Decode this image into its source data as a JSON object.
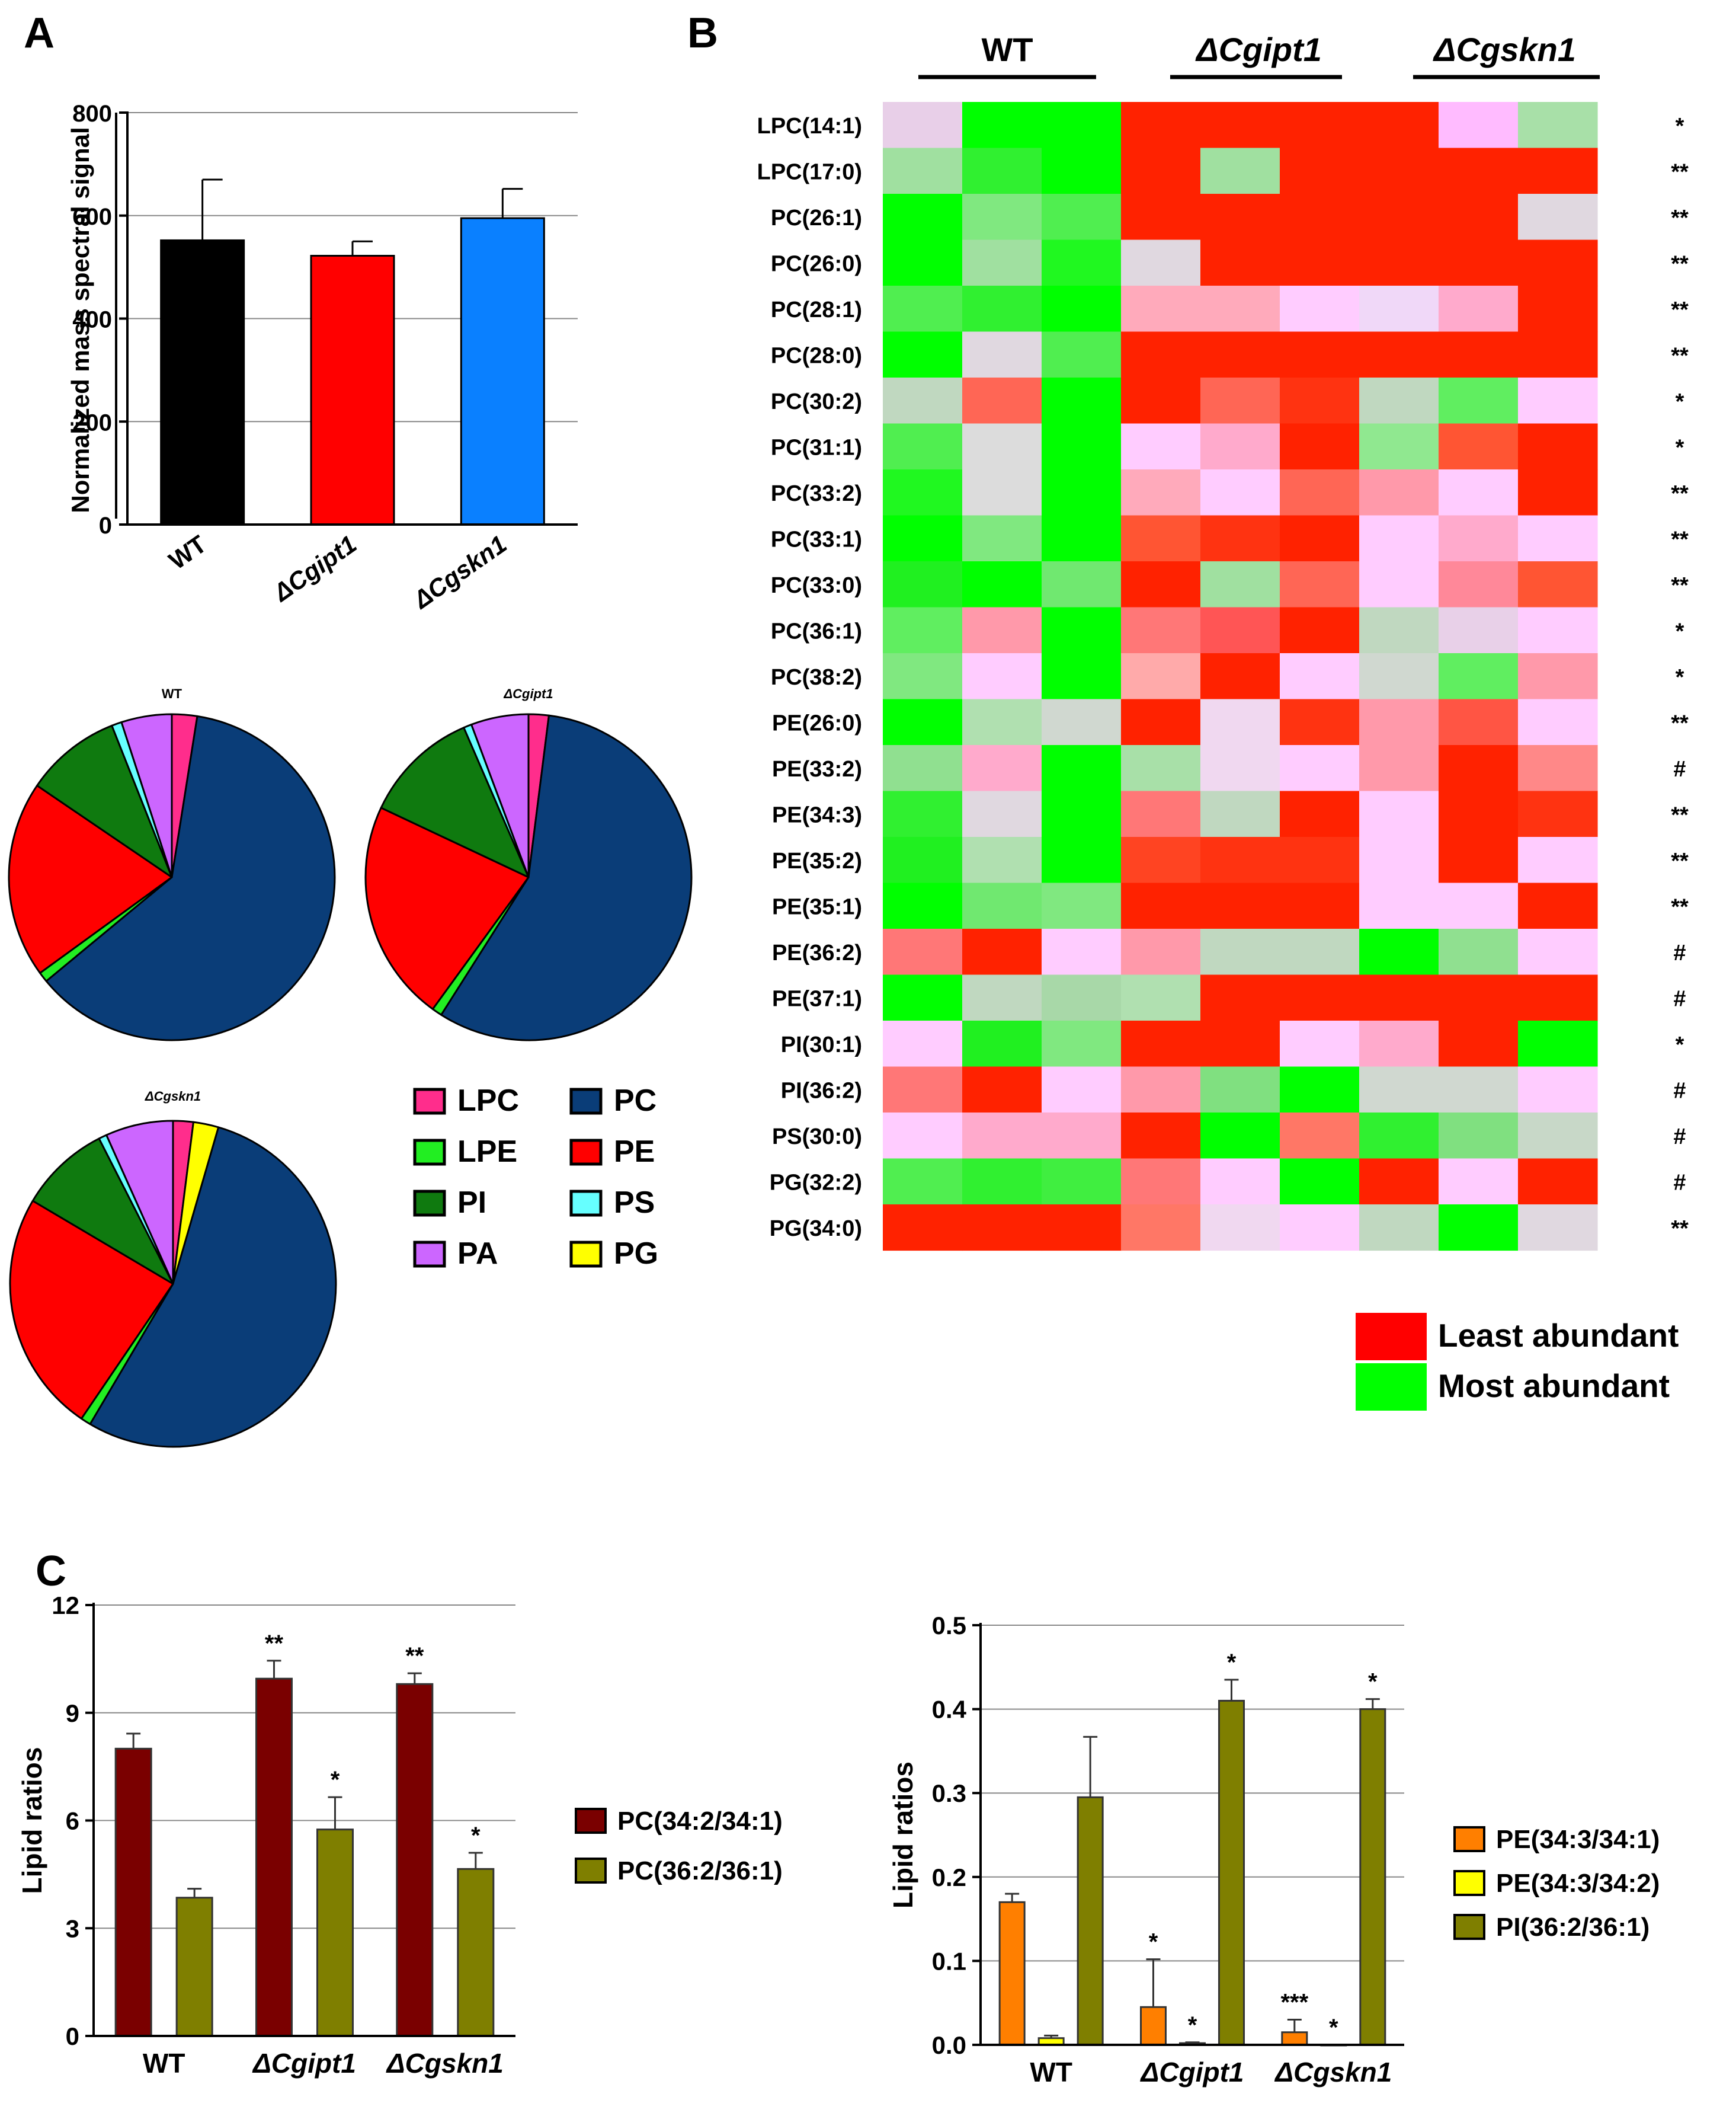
{
  "panels": {
    "a": "A",
    "b": "B",
    "c": "C"
  },
  "chart_data": [
    {
      "id": "A-bar",
      "type": "bar",
      "categories": [
        "WT",
        "ΔCgipt1",
        "ΔCgskn1"
      ],
      "values": [
        552,
        522,
        595
      ],
      "errors": [
        118,
        28,
        57
      ],
      "colors": [
        "#000000",
        "#ff0000",
        "#0a80ff"
      ],
      "ylabel": "Normalized mass spectral signal",
      "ylim": [
        0,
        800
      ],
      "yticks": [
        0,
        200,
        400,
        600,
        800
      ],
      "grid": true
    },
    {
      "id": "A-pie-WT",
      "type": "pie",
      "title": "WT",
      "slices": [
        {
          "name": "LPC",
          "value": 2.5
        },
        {
          "name": "PC",
          "value": 61.5
        },
        {
          "name": "LPE",
          "value": 1.0
        },
        {
          "name": "PE",
          "value": 19.5
        },
        {
          "name": "PI",
          "value": 9.5
        },
        {
          "name": "PS",
          "value": 1.0
        },
        {
          "name": "PA",
          "value": 5.0
        }
      ]
    },
    {
      "id": "A-pie-Cgipt1",
      "type": "pie",
      "title": "ΔCgipt1",
      "slices": [
        {
          "name": "LPC",
          "value": 2.0
        },
        {
          "name": "PC",
          "value": 57.0
        },
        {
          "name": "LPE",
          "value": 1.0
        },
        {
          "name": "PE",
          "value": 22.0
        },
        {
          "name": "PI",
          "value": 11.5
        },
        {
          "name": "PS",
          "value": 0.8
        },
        {
          "name": "PA",
          "value": 5.7
        }
      ]
    },
    {
      "id": "A-pie-Cgskn1",
      "type": "pie",
      "title": "ΔCgskn1",
      "slices": [
        {
          "name": "LPC",
          "value": 2.0
        },
        {
          "name": "PG",
          "value": 2.5
        },
        {
          "name": "PC",
          "value": 54.0
        },
        {
          "name": "LPE",
          "value": 1.0
        },
        {
          "name": "PE",
          "value": 24.0
        },
        {
          "name": "PI",
          "value": 9.0
        },
        {
          "name": "PS",
          "value": 0.8
        },
        {
          "name": "PA",
          "value": 6.7
        }
      ]
    },
    {
      "id": "B-heatmap",
      "type": "heatmap",
      "groups": [
        "WT",
        "ΔCgipt1",
        "ΔCgskn1"
      ],
      "rows": [
        "LPC(14:1)",
        "LPC(17:0)",
        "PC(26:1)",
        "PC(26:0)",
        "PC(28:1)",
        "PC(28:0)",
        "PC(30:2)",
        "PC(31:1)",
        "PC(33:2)",
        "PC(33:1)",
        "PC(33:0)",
        "PC(36:1)",
        "PC(38:2)",
        "PE(26:0)",
        "PE(33:2)",
        "PE(34:3)",
        "PE(35:2)",
        "PE(35:1)",
        "PE(36:2)",
        "PE(37:1)",
        "PI(30:1)",
        "PI(36:2)",
        "PS(30:0)",
        "PG(32:2)",
        "PG(34:0)"
      ],
      "significance": [
        "*",
        "**",
        "**",
        "**",
        "**",
        "**",
        "*",
        "*",
        "**",
        "**",
        "**",
        "*",
        "*",
        "**",
        "#",
        "**",
        "**",
        "**",
        "#",
        "#",
        "*",
        "#",
        "#",
        "#",
        "**"
      ],
      "cells": [
        [
          "#e8cfe8",
          "#00ff00",
          "#00ff00",
          "#ff2200",
          "#ff2200",
          "#ff2200",
          "#ff2200",
          "#ffbbff",
          "#a8e0a8"
        ],
        [
          "#a0e0a0",
          "#30f030",
          "#00ff00",
          "#ff2200",
          "#a0e0a0",
          "#ff2200",
          "#ff2200",
          "#ff2200",
          "#ff2200"
        ],
        [
          "#00ff00",
          "#80e880",
          "#50ee50",
          "#ff2200",
          "#ff2200",
          "#ff2200",
          "#ff2200",
          "#ff2200",
          "#e0d8e0"
        ],
        [
          "#00ff00",
          "#a0e0a0",
          "#20f820",
          "#e0d8e0",
          "#ff2200",
          "#ff2200",
          "#ff2200",
          "#ff2200",
          "#ff2200"
        ],
        [
          "#50ee50",
          "#30f030",
          "#00ff00",
          "#ffaabb",
          "#ffaabb",
          "#ffccff",
          "#f0d8f8",
          "#ffaacc",
          "#ff2200"
        ],
        [
          "#00ff00",
          "#e0d8e0",
          "#50ee50",
          "#ff2200",
          "#ff2200",
          "#ff2200",
          "#ff2200",
          "#ff2200",
          "#ff2200"
        ],
        [
          "#c0d8c0",
          "#ff6655",
          "#00ff00",
          "#ff2200",
          "#ff6655",
          "#ff3311",
          "#c0d8c0",
          "#60ee60",
          "#ffccff"
        ],
        [
          "#50ee50",
          "#dcdcdc",
          "#00ff00",
          "#ffccff",
          "#ffaacc",
          "#ff2200",
          "#90e890",
          "#ff5533",
          "#ff2200"
        ],
        [
          "#20f820",
          "#dcdcdc",
          "#00ff00",
          "#ffaabb",
          "#ffccff",
          "#ff6655",
          "#ff99aa",
          "#ffccff",
          "#ff2200"
        ],
        [
          "#00ff00",
          "#80e880",
          "#00ff00",
          "#ff5533",
          "#ff3311",
          "#ff2200",
          "#ffccff",
          "#ffaacc",
          "#ffccff"
        ],
        [
          "#20f020",
          "#00ff00",
          "#70e870",
          "#ff2200",
          "#a0e0a0",
          "#ff6655",
          "#ffccff",
          "#ff8899",
          "#ff5533"
        ],
        [
          "#60ee60",
          "#ff99aa",
          "#00ff00",
          "#ff7777",
          "#ff5555",
          "#ff2200",
          "#c0d8c0",
          "#e8d0e8",
          "#ffccff"
        ],
        [
          "#80e880",
          "#ffccff",
          "#00ff00",
          "#ffaaaa",
          "#ff2200",
          "#ffccff",
          "#d0d8d0",
          "#60ee60",
          "#ff99aa"
        ],
        [
          "#00ff00",
          "#b0e0b0",
          "#d0d8d0",
          "#ff2200",
          "#f0d8f0",
          "#ff3311",
          "#ff99aa",
          "#ff5544",
          "#ffccff"
        ],
        [
          "#90e090",
          "#ffaacc",
          "#00ff00",
          "#a8e0a8",
          "#f0d8f0",
          "#ffccff",
          "#ff99aa",
          "#ff2200",
          "#ff8888"
        ],
        [
          "#30f030",
          "#e0d8e0",
          "#00ff00",
          "#ff7777",
          "#c0d8c0",
          "#ff2200",
          "#ffccff",
          "#ff2200",
          "#ff3311"
        ],
        [
          "#20f020",
          "#b0e0b0",
          "#00ff00",
          "#ff4422",
          "#ff3311",
          "#ff3311",
          "#ffccff",
          "#ff2200",
          "#ffccff"
        ],
        [
          "#00ff00",
          "#70e870",
          "#80e880",
          "#ff2200",
          "#ff2200",
          "#ff2200",
          "#ffccff",
          "#ffccff",
          "#ff2200"
        ],
        [
          "#ff7777",
          "#ff2200",
          "#ffccff",
          "#ff99aa",
          "#c0d8c0",
          "#c0d8c0",
          "#00ff00",
          "#90e090",
          "#ffccff"
        ],
        [
          "#00ff00",
          "#c0d8c0",
          "#a8d8a8",
          "#b0e0b0",
          "#ff2200",
          "#ff2200",
          "#ff2200",
          "#ff2200",
          "#ff2200"
        ],
        [
          "#ffccff",
          "#20f020",
          "#80e880",
          "#ff2200",
          "#ff2200",
          "#ffccff",
          "#ffaacc",
          "#ff2200",
          "#00ff00"
        ],
        [
          "#ff7777",
          "#ff2200",
          "#ffccff",
          "#ff99aa",
          "#80e080",
          "#00ff00",
          "#d0d8d0",
          "#d0d8d0",
          "#ffccff"
        ],
        [
          "#ffccff",
          "#ffaacc",
          "#ffaacc",
          "#ff2200",
          "#00ff00",
          "#ff7766",
          "#30f030",
          "#80e080",
          "#c8d8c8"
        ],
        [
          "#50ee50",
          "#30f030",
          "#40ee40",
          "#ff7777",
          "#ffccff",
          "#00ff00",
          "#ff2200",
          "#ffccff",
          "#ff2200"
        ],
        [
          "#ff2200",
          "#ff2200",
          "#ff2200",
          "#ff7766",
          "#f0d8f0",
          "#ffccff",
          "#c0d8c0",
          "#00ff00",
          "#e0d8e0"
        ]
      ],
      "scale": [
        {
          "label": "Least abundant",
          "color": "#ff0000"
        },
        {
          "label": "Most abundant",
          "color": "#00ff00"
        }
      ]
    },
    {
      "id": "C-left",
      "type": "bar",
      "categories": [
        "WT",
        "ΔCgipt1",
        "ΔCgskn1"
      ],
      "series": [
        {
          "name": "PC(34:2/34:1)",
          "values": [
            8.0,
            9.95,
            9.8
          ],
          "errors": [
            0.42,
            0.5,
            0.3
          ],
          "sig": [
            "",
            "**",
            "**"
          ]
        },
        {
          "name": "PC(36:2/36:1)",
          "values": [
            3.85,
            5.75,
            4.65
          ],
          "errors": [
            0.25,
            0.9,
            0.45
          ],
          "sig": [
            "",
            "*",
            "*"
          ]
        }
      ],
      "ylabel": "Lipid ratios",
      "ylim": [
        0,
        12
      ],
      "yticks": [
        0,
        3,
        6,
        9,
        12
      ],
      "grid": true,
      "legend": "right"
    },
    {
      "id": "C-right",
      "type": "bar",
      "categories": [
        "WT",
        "ΔCgipt1",
        "ΔCgskn1"
      ],
      "series": [
        {
          "name": "PE(34:3/34:1)",
          "values": [
            0.17,
            0.045,
            0.015
          ],
          "errors": [
            0.01,
            0.057,
            0.015
          ],
          "sig": [
            "",
            "*",
            "***"
          ]
        },
        {
          "name": "PE(34:3/34:2)",
          "values": [
            0.008,
            0.002,
            0.0
          ],
          "errors": [
            0.003,
            0.001,
            0.0
          ],
          "sig": [
            "",
            "*",
            "*"
          ]
        },
        {
          "name": "PI(36:2/36:1)",
          "values": [
            0.295,
            0.41,
            0.4
          ],
          "errors": [
            0.072,
            0.025,
            0.012
          ],
          "sig": [
            "",
            "*",
            "*"
          ]
        }
      ],
      "ylabel": "Lipid ratios",
      "ylim": [
        0,
        0.5
      ],
      "yticks": [
        "0.0",
        "0.1",
        "0.2",
        "0.3",
        "0.4",
        "0.5"
      ],
      "grid": true,
      "legend": "right"
    }
  ],
  "legend_pie": [
    {
      "name": "LPC",
      "color": "#ff2d8c"
    },
    {
      "name": "PC",
      "color": "#0a3d78"
    },
    {
      "name": "LPE",
      "color": "#22ee22"
    },
    {
      "name": "PE",
      "color": "#ff0000"
    },
    {
      "name": "PI",
      "color": "#0f7a0f"
    },
    {
      "name": "PS",
      "color": "#66ffff"
    },
    {
      "name": "PA",
      "color": "#cc66ff"
    },
    {
      "name": "PG",
      "color": "#ffff00"
    }
  ],
  "colors": {
    "c_left": [
      "#7a0000",
      "#7f7f00"
    ],
    "c_right": [
      "#ff7f00",
      "#ffff00",
      "#7f7f00"
    ]
  }
}
